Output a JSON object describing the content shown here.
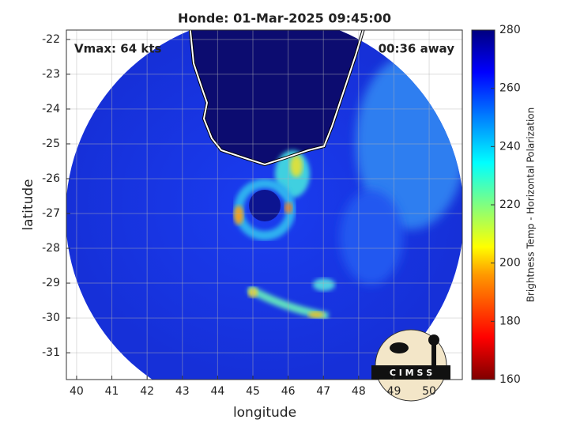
{
  "map": {
    "title": "Honde: 01-Mar-2025 09:45:00",
    "annotations": {
      "vmax": "Vmax: 64 kts",
      "away": "00:36 away"
    },
    "x_label": "longitude",
    "y_label": "latitude",
    "xlim": [
      39.71,
      50.94
    ],
    "ylim": [
      -31.77,
      -21.73
    ],
    "xticks": [
      40,
      41,
      42,
      43,
      44,
      45,
      46,
      47,
      48,
      49,
      50
    ],
    "yticks": [
      -31,
      -30,
      -29,
      -28,
      -27,
      -26,
      -25,
      -24,
      -23,
      -22
    ],
    "grid": true,
    "colorbar": {
      "label": "Brightness Temp - Horizontal Polarization",
      "lim": [
        160,
        280
      ],
      "ticks": [
        160,
        180,
        200,
        220,
        240,
        260,
        280
      ]
    },
    "logo": "C I M S S"
  }
}
